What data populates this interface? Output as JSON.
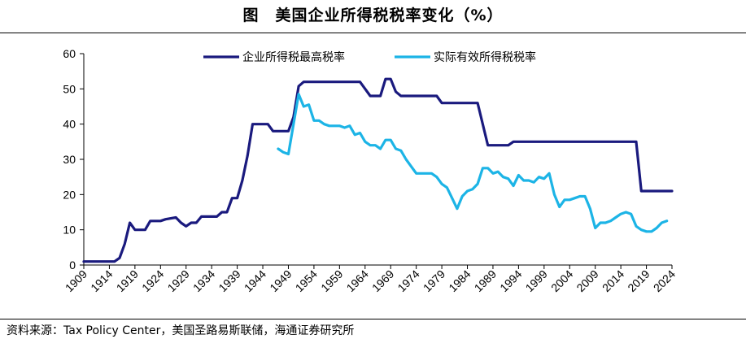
{
  "header": {
    "title": "图　美国企业所得税税率变化（%）"
  },
  "footer": {
    "source": "资料来源：Tax Policy Center，美国圣路易斯联储，海通证券研究所"
  },
  "colors": {
    "statutory": "#1a1a7e",
    "effective": "#1cb4e6",
    "axis": "#000000"
  },
  "chart_data": {
    "type": "line",
    "title": "美国企业所得税税率变化（%）",
    "xlabel": "",
    "ylabel": "",
    "xlim": [
      1909,
      2024
    ],
    "ylim": [
      0,
      60
    ],
    "yticks": [
      0,
      10,
      20,
      30,
      40,
      50,
      60
    ],
    "xticks": [
      1909,
      1914,
      1919,
      1924,
      1929,
      1934,
      1939,
      1944,
      1949,
      1954,
      1959,
      1964,
      1969,
      1974,
      1979,
      1984,
      1989,
      1994,
      1999,
      2004,
      2009,
      2014,
      2019,
      2024
    ],
    "legend_position": "top",
    "series": [
      {
        "name": "企业所得税最高税率",
        "color": "#1a1a7e",
        "points": [
          [
            1909,
            1
          ],
          [
            1915,
            1
          ],
          [
            1916,
            2
          ],
          [
            1917,
            6
          ],
          [
            1918,
            12
          ],
          [
            1919,
            10
          ],
          [
            1921,
            10
          ],
          [
            1922,
            12.5
          ],
          [
            1924,
            12.5
          ],
          [
            1925,
            13
          ],
          [
            1927,
            13.5
          ],
          [
            1928,
            12
          ],
          [
            1929,
            11
          ],
          [
            1930,
            12
          ],
          [
            1931,
            12
          ],
          [
            1932,
            13.75
          ],
          [
            1935,
            13.75
          ],
          [
            1936,
            15
          ],
          [
            1937,
            15
          ],
          [
            1938,
            19
          ],
          [
            1939,
            19
          ],
          [
            1940,
            24
          ],
          [
            1941,
            31
          ],
          [
            1942,
            40
          ],
          [
            1943,
            40
          ],
          [
            1945,
            40
          ],
          [
            1946,
            38
          ],
          [
            1949,
            38
          ],
          [
            1950,
            42
          ],
          [
            1951,
            50.75
          ],
          [
            1952,
            52
          ],
          [
            1963,
            52
          ],
          [
            1964,
            50
          ],
          [
            1965,
            48
          ],
          [
            1967,
            48
          ],
          [
            1968,
            52.8
          ],
          [
            1969,
            52.8
          ],
          [
            1970,
            49.2
          ],
          [
            1971,
            48
          ],
          [
            1978,
            48
          ],
          [
            1979,
            46
          ],
          [
            1986,
            46
          ],
          [
            1987,
            40
          ],
          [
            1988,
            34
          ],
          [
            1992,
            34
          ],
          [
            1993,
            35
          ],
          [
            2017,
            35
          ],
          [
            2018,
            21
          ],
          [
            2024,
            21
          ]
        ]
      },
      {
        "name": "实际有效所得税税率",
        "color": "#1cb4e6",
        "points": [
          [
            1947,
            33
          ],
          [
            1948,
            32
          ],
          [
            1949,
            31.5
          ],
          [
            1950,
            40
          ],
          [
            1951,
            48.5
          ],
          [
            1952,
            45
          ],
          [
            1953,
            45.5
          ],
          [
            1954,
            41
          ],
          [
            1955,
            41
          ],
          [
            1956,
            40
          ],
          [
            1957,
            39.5
          ],
          [
            1959,
            39.5
          ],
          [
            1960,
            39
          ],
          [
            1961,
            39.5
          ],
          [
            1962,
            37
          ],
          [
            1963,
            37.5
          ],
          [
            1964,
            35
          ],
          [
            1965,
            34
          ],
          [
            1966,
            34
          ],
          [
            1967,
            33
          ],
          [
            1968,
            35.5
          ],
          [
            1969,
            35.5
          ],
          [
            1970,
            33
          ],
          [
            1971,
            32.5
          ],
          [
            1972,
            30
          ],
          [
            1973,
            28
          ],
          [
            1974,
            26
          ],
          [
            1975,
            26
          ],
          [
            1976,
            26
          ],
          [
            1977,
            26
          ],
          [
            1978,
            25
          ],
          [
            1979,
            23
          ],
          [
            1980,
            22
          ],
          [
            1981,
            19
          ],
          [
            1982,
            16
          ],
          [
            1983,
            19.5
          ],
          [
            1984,
            21
          ],
          [
            1985,
            21.5
          ],
          [
            1986,
            23
          ],
          [
            1987,
            27.5
          ],
          [
            1988,
            27.5
          ],
          [
            1989,
            26
          ],
          [
            1990,
            26.5
          ],
          [
            1991,
            25
          ],
          [
            1992,
            24.5
          ],
          [
            1993,
            22.5
          ],
          [
            1994,
            25.5
          ],
          [
            1995,
            24
          ],
          [
            1996,
            24
          ],
          [
            1997,
            23.5
          ],
          [
            1998,
            25
          ],
          [
            1999,
            24.5
          ],
          [
            2000,
            26
          ],
          [
            2001,
            20
          ],
          [
            2002,
            16.5
          ],
          [
            2003,
            18.5
          ],
          [
            2004,
            18.5
          ],
          [
            2005,
            19
          ],
          [
            2006,
            19.5
          ],
          [
            2007,
            19.5
          ],
          [
            2008,
            16
          ],
          [
            2009,
            10.5
          ],
          [
            2010,
            12
          ],
          [
            2011,
            12
          ],
          [
            2012,
            12.5
          ],
          [
            2013,
            13.5
          ],
          [
            2014,
            14.5
          ],
          [
            2015,
            15
          ],
          [
            2016,
            14.5
          ],
          [
            2017,
            11
          ],
          [
            2018,
            10
          ],
          [
            2019,
            9.5
          ],
          [
            2020,
            9.5
          ],
          [
            2021,
            10.5
          ],
          [
            2022,
            12
          ],
          [
            2023,
            12.5
          ]
        ]
      }
    ]
  }
}
